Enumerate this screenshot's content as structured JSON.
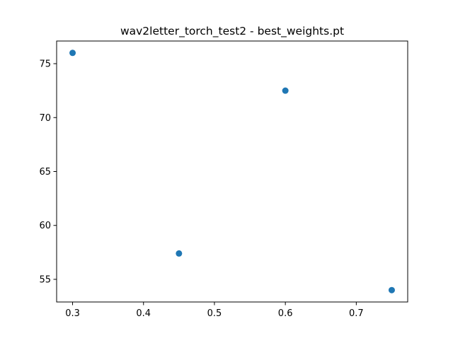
{
  "chart_data": {
    "type": "scatter",
    "title": "wav2letter_torch_test2 - best_weights.pt",
    "xlabel": "",
    "ylabel": "",
    "x": [
      0.3,
      0.45,
      0.6,
      0.75
    ],
    "y": [
      76.0,
      57.4,
      72.5,
      54.0
    ],
    "xlim": [
      0.2775,
      0.7725
    ],
    "ylim": [
      52.9,
      77.1
    ],
    "xticks": [
      0.3,
      0.4,
      0.5,
      0.6,
      0.7
    ],
    "xtick_labels": [
      "0.3",
      "0.4",
      "0.5",
      "0.6",
      "0.7"
    ],
    "yticks": [
      55,
      60,
      65,
      70,
      75
    ],
    "ytick_labels": [
      "55",
      "60",
      "65",
      "70",
      "75"
    ],
    "grid": false,
    "legend": "none",
    "marker_color": "#1f77b4"
  }
}
